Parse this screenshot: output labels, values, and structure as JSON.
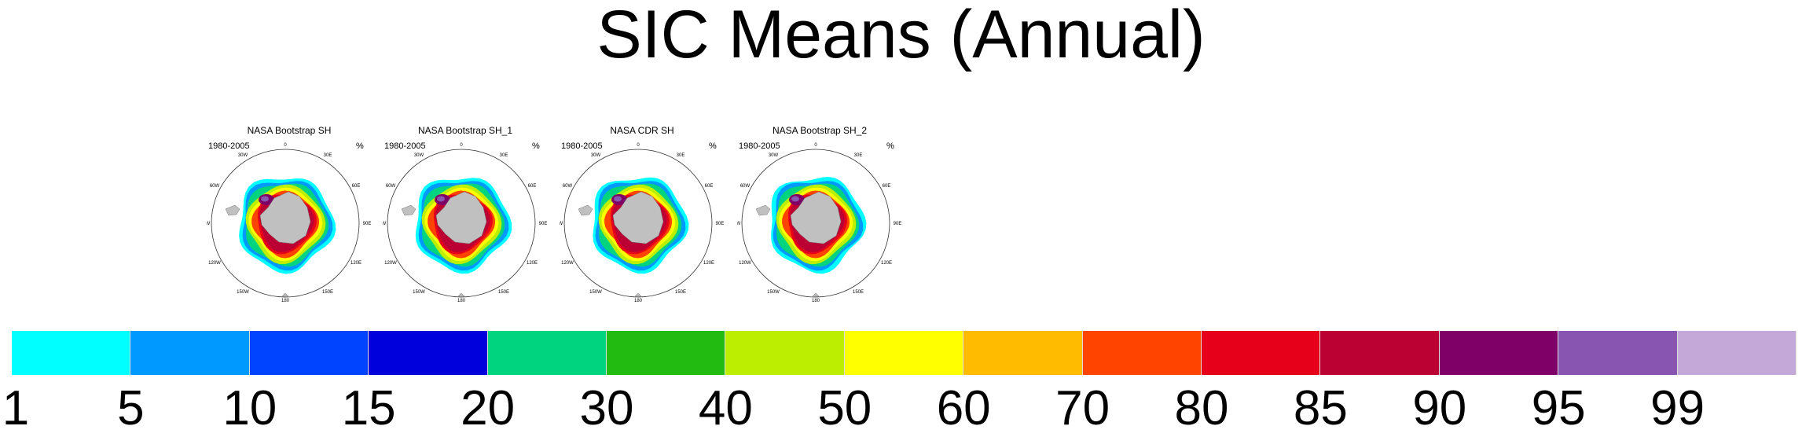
{
  "title": "SIC Means (Annual)",
  "panels": [
    {
      "title": "NASA Bootstrap SH",
      "period": "1980-2005",
      "unit": "%"
    },
    {
      "title": "NASA Bootstrap SH_1",
      "period": "1980-2005",
      "unit": "%"
    },
    {
      "title": "NASA CDR SH",
      "period": "1980-2005",
      "unit": "%"
    },
    {
      "title": "NASA Bootstrap SH_2",
      "period": "1980-2005",
      "unit": "%"
    }
  ],
  "map_labels": {
    "lon_top": "0",
    "lon_30w": "30W",
    "lon_30e": "30E",
    "lon_60w": "60W",
    "lon_60e": "60E",
    "lon_90w": "90W",
    "lon_90e": "90E",
    "lon_120w": "120W",
    "lon_120e": "120E",
    "lon_150w": "150W",
    "lon_150e": "150E",
    "lon_bottom": "180"
  },
  "colorbar": {
    "colors": [
      "#00ffff",
      "#0099ff",
      "#0044ff",
      "#0000dd",
      "#00d47e",
      "#22bb11",
      "#bbee00",
      "#ffff00",
      "#ffbb00",
      "#ff4400",
      "#e60019",
      "#bb0033",
      "#7f0066",
      "#8855b0",
      "#c4a8d8"
    ],
    "tick_labels": [
      "1",
      "5",
      "10",
      "15",
      "20",
      "30",
      "40",
      "50",
      "60",
      "70",
      "80",
      "85",
      "90",
      "95",
      "99"
    ]
  },
  "colors": {
    "land": "#c0c0c0",
    "open_ocean": "#ffffff"
  }
}
